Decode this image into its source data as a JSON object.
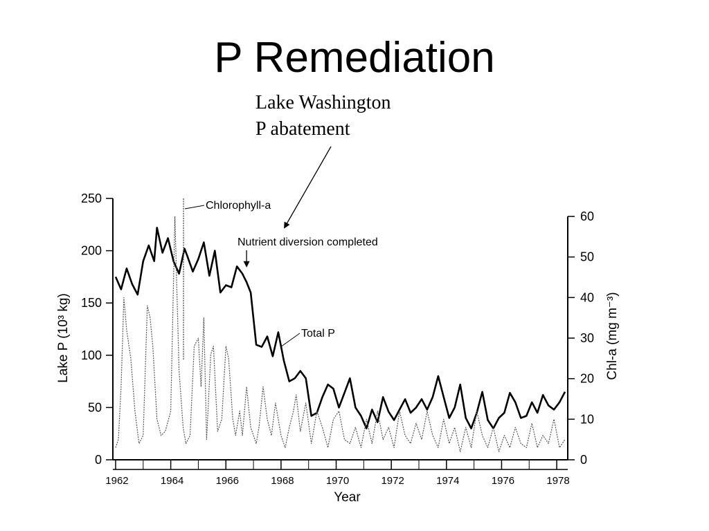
{
  "slide": {
    "title": "P Remediation",
    "annotation_line1": "Lake Washington",
    "annotation_line2": "P abatement"
  },
  "chart_data": {
    "type": "line",
    "xlabel": "Year",
    "ylabel_left": "Lake P (10³ kg)",
    "ylabel_right": "Chl-a (mg m⁻³)",
    "xlim": [
      1961.9,
      1978.4
    ],
    "ylim_left": [
      0,
      250
    ],
    "ylim_right": [
      0,
      60
    ],
    "x_ticks": [
      "1962",
      "1964",
      "1966",
      "1968",
      "1970",
      "1972",
      "1974",
      "1976",
      "1978"
    ],
    "x_tick_values": [
      1962,
      1964,
      1966,
      1968,
      1970,
      1972,
      1974,
      1976,
      1978
    ],
    "y_ticks_left": [
      "0",
      "50",
      "100",
      "150",
      "200",
      "250"
    ],
    "y_tick_values_left": [
      0,
      50,
      100,
      150,
      200,
      250
    ],
    "y_ticks_right": [
      "0",
      "10",
      "20",
      "30",
      "40",
      "50",
      "60"
    ],
    "y_tick_values_right": [
      0,
      10,
      20,
      30,
      40,
      50,
      60
    ],
    "grid": false,
    "annotations": {
      "chlorophyll": "Chlorophyll-a",
      "nutrient_diversion": "Nutrient diversion completed",
      "total_p": "Total P",
      "diversion_year": 1966.75
    },
    "series": [
      {
        "name": "Total P",
        "axis": "left",
        "color": "#000000",
        "x": [
          1962.0,
          1962.2,
          1962.4,
          1962.6,
          1962.8,
          1963.0,
          1963.2,
          1963.4,
          1963.5,
          1963.7,
          1963.9,
          1964.1,
          1964.3,
          1964.5,
          1964.6,
          1964.8,
          1965.0,
          1965.2,
          1965.4,
          1965.6,
          1965.8,
          1966.0,
          1966.2,
          1966.4,
          1966.6,
          1966.75,
          1966.9,
          1967.1,
          1967.3,
          1967.5,
          1967.7,
          1967.9,
          1968.1,
          1968.3,
          1968.5,
          1968.7,
          1968.9,
          1969.1,
          1969.3,
          1969.5,
          1969.7,
          1969.9,
          1970.1,
          1970.3,
          1970.5,
          1970.7,
          1970.9,
          1971.1,
          1971.3,
          1971.5,
          1971.7,
          1971.9,
          1972.1,
          1972.3,
          1972.5,
          1972.7,
          1972.9,
          1973.1,
          1973.3,
          1973.5,
          1973.7,
          1973.9,
          1974.1,
          1974.3,
          1974.5,
          1974.7,
          1974.9,
          1975.1,
          1975.3,
          1975.5,
          1975.7,
          1975.9,
          1976.1,
          1976.3,
          1976.5,
          1976.7,
          1976.9,
          1977.1,
          1977.3,
          1977.5,
          1977.7,
          1977.9,
          1978.1,
          1978.3
        ],
        "y": [
          175,
          163,
          183,
          168,
          158,
          190,
          205,
          190,
          222,
          198,
          212,
          190,
          178,
          202,
          195,
          180,
          192,
          208,
          176,
          200,
          160,
          167,
          165,
          185,
          178,
          170,
          160,
          110,
          108,
          118,
          99,
          122,
          95,
          75,
          78,
          85,
          78,
          42,
          45,
          60,
          72,
          68,
          50,
          64,
          78,
          50,
          42,
          30,
          48,
          36,
          60,
          46,
          38,
          48,
          58,
          45,
          50,
          58,
          48,
          60,
          80,
          60,
          40,
          50,
          72,
          40,
          30,
          45,
          65,
          38,
          30,
          40,
          45,
          64,
          55,
          40,
          42,
          55,
          45,
          62,
          52,
          48,
          55,
          65
        ]
      },
      {
        "name": "Chlorophyll-a",
        "axis": "right",
        "color": "#555555",
        "x": [
          1962.0,
          1962.1,
          1962.2,
          1962.3,
          1962.4,
          1962.55,
          1962.7,
          1962.85,
          1963.0,
          1963.15,
          1963.25,
          1963.35,
          1963.5,
          1963.65,
          1963.8,
          1964.0,
          1964.15,
          1964.3,
          1964.45,
          1964.55,
          1964.7,
          1964.85,
          1965.0,
          1965.1,
          1965.2,
          1965.3,
          1965.45,
          1965.55,
          1965.7,
          1965.85,
          1966.0,
          1966.1,
          1966.25,
          1966.35,
          1966.5,
          1966.6,
          1966.75,
          1966.9,
          1967.1,
          1967.2,
          1967.35,
          1967.5,
          1967.65,
          1967.8,
          1968.0,
          1968.15,
          1968.3,
          1968.45,
          1968.55,
          1968.7,
          1968.9,
          1969.1,
          1969.3,
          1969.5,
          1969.7,
          1969.9,
          1970.1,
          1970.3,
          1970.5,
          1970.7,
          1970.9,
          1971.1,
          1971.3,
          1971.5,
          1971.7,
          1971.9,
          1972.1,
          1972.3,
          1972.5,
          1972.7,
          1972.9,
          1973.1,
          1973.3,
          1973.5,
          1973.7,
          1973.9,
          1974.1,
          1974.3,
          1974.5,
          1974.7,
          1974.9,
          1975.1,
          1975.3,
          1975.5,
          1975.7,
          1975.9,
          1976.1,
          1976.3,
          1976.5,
          1976.7,
          1976.9,
          1977.1,
          1977.3,
          1977.5,
          1977.7,
          1977.9,
          1978.1,
          1978.3
        ],
        "y": [
          3,
          5,
          18,
          40,
          32,
          25,
          12,
          4,
          6,
          38,
          35,
          28,
          10,
          6,
          7,
          12,
          60,
          22,
          8,
          4,
          6,
          28,
          30,
          18,
          35,
          5,
          26,
          28,
          7,
          10,
          28,
          25,
          10,
          6,
          12,
          6,
          18,
          8,
          4,
          8,
          18,
          10,
          6,
          14,
          6,
          3,
          8,
          12,
          16,
          7,
          14,
          4,
          12,
          8,
          3,
          10,
          12,
          5,
          4,
          8,
          3,
          10,
          4,
          12,
          5,
          8,
          3,
          12,
          6,
          4,
          9,
          5,
          12,
          6,
          3,
          10,
          4,
          8,
          2,
          8,
          3,
          12,
          6,
          3,
          8,
          2,
          6,
          3,
          8,
          4,
          3,
          9,
          3,
          6,
          4,
          10,
          3,
          5
        ]
      }
    ]
  }
}
